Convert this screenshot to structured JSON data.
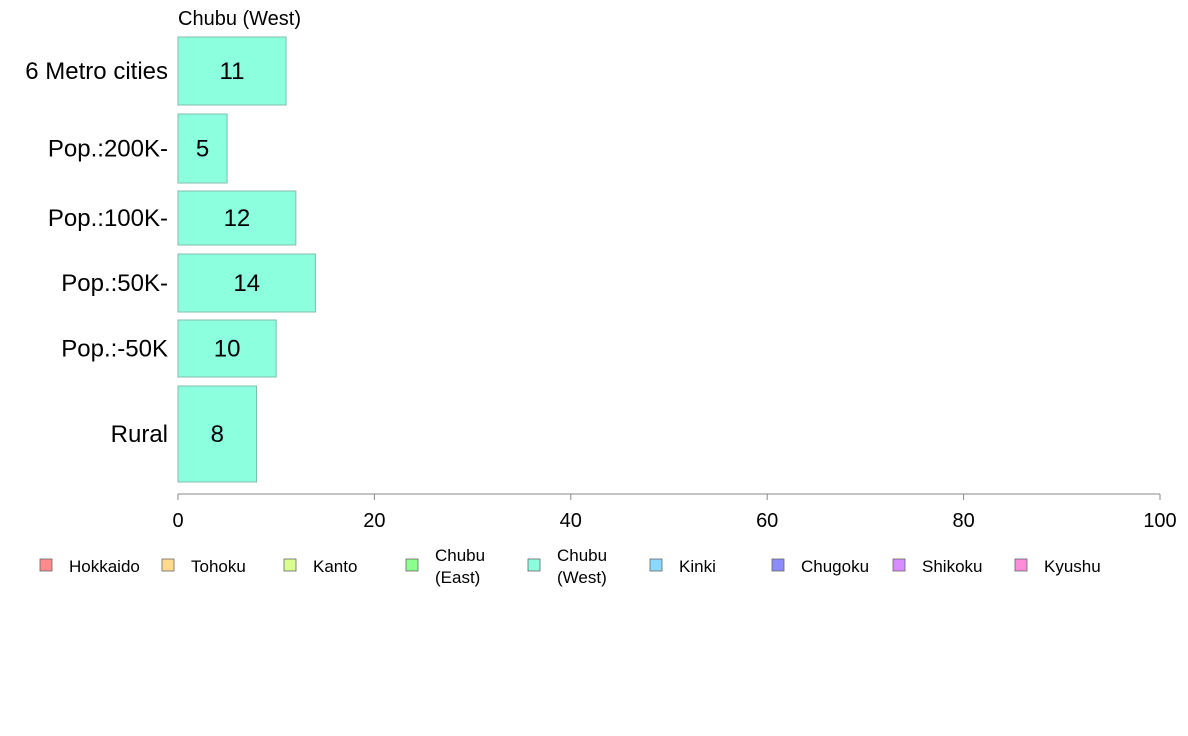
{
  "chart_data": {
    "type": "bar",
    "orientation": "horizontal",
    "panel_title": "Chubu (West)",
    "categories": [
      "6 Metro cities",
      "Pop.:200K-",
      "Pop.:100K-",
      "Pop.:50K-",
      "Pop.:-50K",
      "Rural"
    ],
    "values": [
      11,
      5,
      12,
      14,
      10,
      8
    ],
    "bar_color": "#8cffde",
    "bar_stroke": "#7fbfae",
    "xlim": [
      0,
      100
    ],
    "x_ticks": [
      0,
      20,
      40,
      60,
      80,
      100
    ],
    "xlabel": "",
    "ylabel": "",
    "grid": false,
    "legend": {
      "placement": "bottom",
      "items": [
        {
          "label": [
            "Hokkaido"
          ],
          "color": "#ff8c8c"
        },
        {
          "label": [
            "Tohoku"
          ],
          "color": "#ffd98c"
        },
        {
          "label": [
            "Kanto"
          ],
          "color": "#d9ff8c"
        },
        {
          "label": [
            "Chubu",
            "(East)"
          ],
          "color": "#8cff8c"
        },
        {
          "label": [
            "Chubu",
            "(West)"
          ],
          "color": "#8cffde"
        },
        {
          "label": [
            "Kinki"
          ],
          "color": "#8cd9ff"
        },
        {
          "label": [
            "Chugoku"
          ],
          "color": "#8c8cff"
        },
        {
          "label": [
            "Shikoku"
          ],
          "color": "#d98cff"
        },
        {
          "label": [
            "Kyushu"
          ],
          "color": "#ff8cd9"
        }
      ]
    }
  }
}
